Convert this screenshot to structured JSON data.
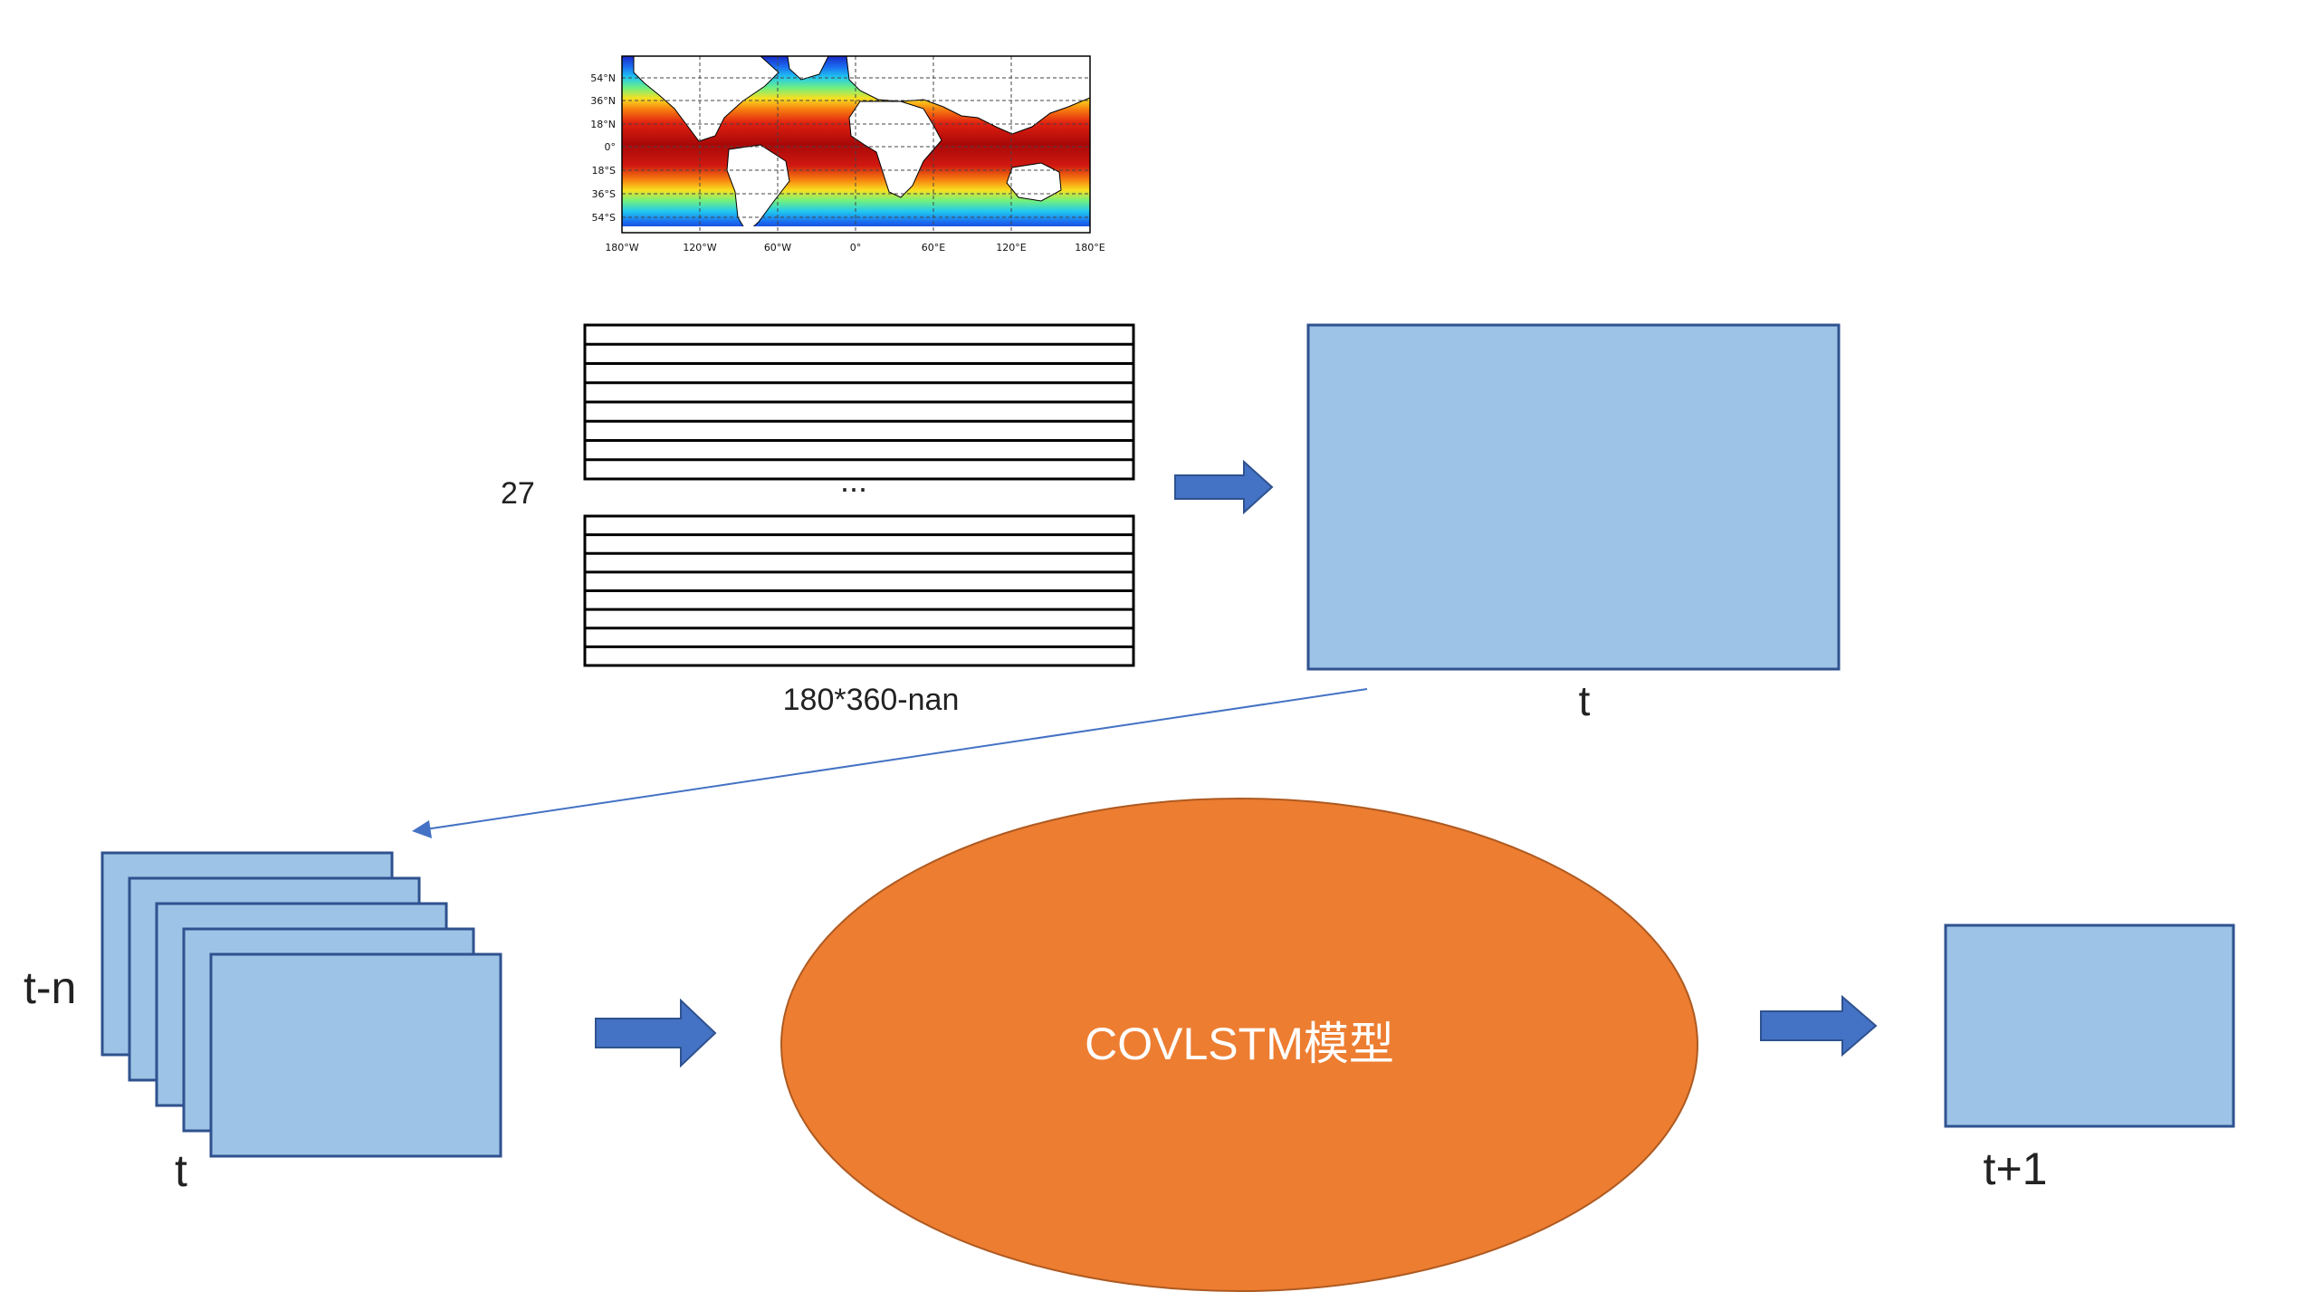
{
  "map": {
    "lat_ticks": [
      "54°N",
      "36°N",
      "18°N",
      "0°",
      "18°S",
      "36°S",
      "54°S"
    ],
    "lon_ticks": [
      "180°W",
      "120°W",
      "60°W",
      "0°",
      "60°E",
      "120°E",
      "180°E"
    ]
  },
  "stack": {
    "count_label": "27",
    "ellipsis": "...",
    "size_label": "180*360-nan"
  },
  "frame_t": {
    "label": "t"
  },
  "sequence": {
    "start_label": "t-n",
    "end_label": "t"
  },
  "model": {
    "label": "COVLSTM模型"
  },
  "output": {
    "label": "t+1"
  },
  "colors": {
    "box_fill": "#9dc3e6",
    "box_stroke": "#2f528f",
    "arrow_fill": "#4472c4",
    "model_fill": "#ed7d31",
    "model_stroke": "#ae5a21"
  }
}
